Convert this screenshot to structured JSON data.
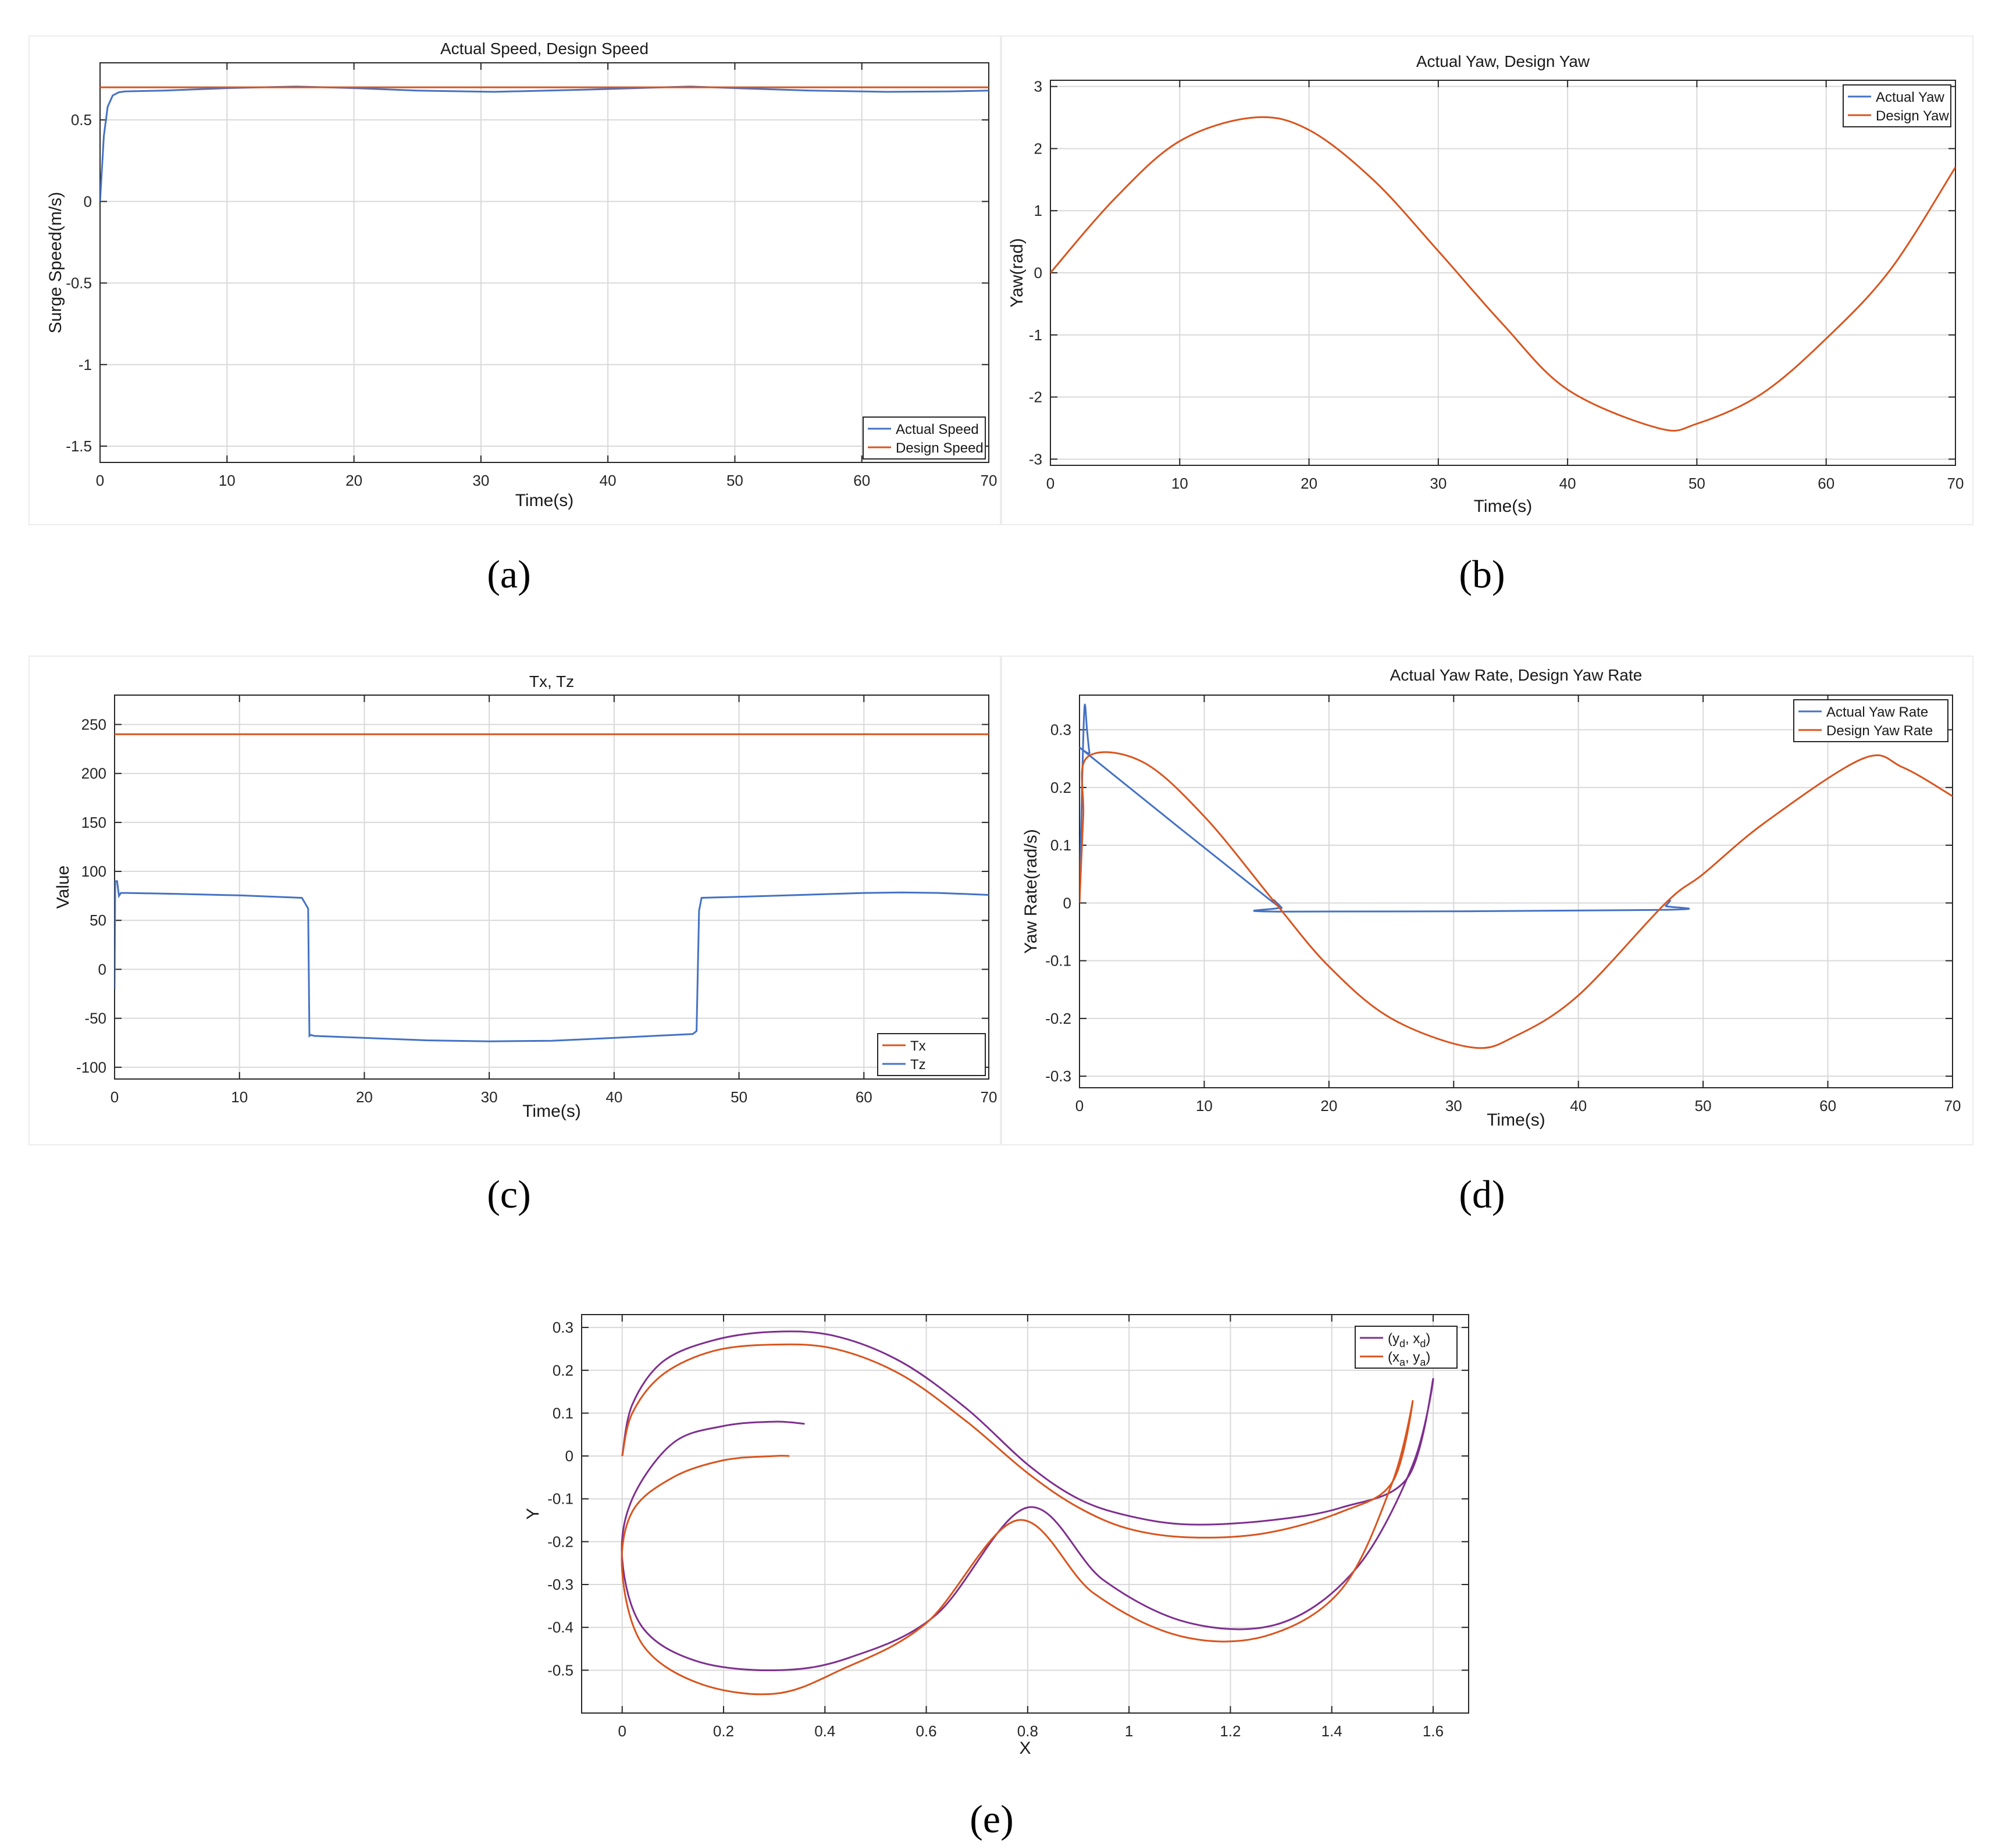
{
  "captions": [
    "(a)",
    "(b)",
    "(c)",
    "(d)",
    "(e)"
  ],
  "colors": {
    "blue": "#4472c4",
    "orange": "#d9541e",
    "purple": "#7e2f8e",
    "grid": "#d9d9d9",
    "axis": "#262626"
  },
  "chart_data": [
    {
      "id": "a",
      "type": "line",
      "title": "Actual Speed, Design Speed",
      "xlabel": "Time(s)",
      "ylabel": "Surge Speed(m/s)",
      "xlim": [
        0,
        70
      ],
      "ylim": [
        -1.6,
        0.85
      ],
      "xticks": [
        0,
        10,
        20,
        30,
        40,
        50,
        60,
        70
      ],
      "yticks": [
        -1.5,
        -1,
        -0.5,
        0,
        0.5
      ],
      "ytick_labels": [
        "-1.5",
        "-1",
        "-0.5",
        "0",
        "0.5"
      ],
      "grid": true,
      "legend_position": "bottom-right",
      "series": [
        {
          "name": "Actual Speed",
          "color": "blue",
          "x": [
            0,
            0.3,
            0.6,
            1,
            1.5,
            2,
            5,
            10,
            15.5,
            20,
            25,
            31,
            38,
            46.5,
            50,
            56,
            62,
            67,
            70
          ],
          "y": [
            0,
            0.4,
            0.58,
            0.65,
            0.67,
            0.675,
            0.68,
            0.695,
            0.705,
            0.695,
            0.68,
            0.672,
            0.685,
            0.705,
            0.695,
            0.68,
            0.672,
            0.675,
            0.68
          ]
        },
        {
          "name": "Design Speed",
          "color": "orange",
          "x": [
            0,
            70
          ],
          "y": [
            0.7,
            0.7
          ]
        }
      ]
    },
    {
      "id": "b",
      "type": "line",
      "title": "Actual Yaw, Design Yaw",
      "xlabel": "Time(s)",
      "ylabel": "Yaw(rad)",
      "xlim": [
        0,
        70
      ],
      "ylim": [
        -3.1,
        3.1
      ],
      "xticks": [
        0,
        10,
        20,
        30,
        40,
        50,
        60,
        70
      ],
      "yticks": [
        -3,
        -2,
        -1,
        0,
        1,
        2,
        3
      ],
      "ytick_labels": [
        "-3",
        "-2",
        "-1",
        "0",
        "1",
        "2",
        "3"
      ],
      "grid": true,
      "legend_position": "top-right",
      "series": [
        {
          "name": "Actual Yaw",
          "color": "blue",
          "x": [],
          "y": []
        },
        {
          "name": "Design Yaw",
          "color": "orange",
          "x": [
            0,
            5,
            10,
            15.7,
            20,
            25,
            30,
            35,
            40,
            47,
            50,
            55,
            60,
            65,
            70
          ],
          "y": [
            0,
            1.2,
            2.12,
            2.5,
            2.3,
            1.49,
            0.35,
            -0.83,
            -1.88,
            -2.5,
            -2.43,
            -1.95,
            -1.06,
            0.06,
            1.7
          ]
        }
      ]
    },
    {
      "id": "c",
      "type": "line",
      "title": "Tx, Tz",
      "xlabel": "Time(s)",
      "ylabel": "Value",
      "xlim": [
        0,
        70
      ],
      "ylim": [
        -112,
        280
      ],
      "xticks": [
        0,
        10,
        20,
        30,
        40,
        50,
        60,
        70
      ],
      "yticks": [
        -100,
        -50,
        0,
        50,
        100,
        150,
        200,
        250
      ],
      "ytick_labels": [
        "-100",
        "-50",
        "0",
        "50",
        "100",
        "150",
        "200",
        "250"
      ],
      "grid": true,
      "legend_position": "bottom-right",
      "series": [
        {
          "name": "Tx",
          "color": "orange",
          "x": [
            0,
            70
          ],
          "y": [
            240,
            240
          ]
        },
        {
          "name": "Tz",
          "color": "blue",
          "x": [
            0,
            0.05,
            0.2,
            0.35,
            0.5,
            1,
            5,
            10,
            15,
            15.5,
            15.6,
            15.7,
            16,
            20,
            25,
            30,
            35,
            40,
            46.3,
            46.6,
            46.8,
            47,
            50,
            55,
            60,
            63,
            66,
            70
          ],
          "y": [
            -20,
            90,
            90,
            75,
            78,
            78,
            77,
            75.5,
            73,
            62,
            -68,
            -67,
            -68,
            -70,
            -72.5,
            -73.5,
            -73,
            -70,
            -66,
            -63,
            60,
            73,
            74,
            76,
            78,
            78.5,
            78,
            76
          ]
        }
      ]
    },
    {
      "id": "d",
      "type": "line",
      "title": "Actual Yaw Rate, Design Yaw Rate",
      "xlabel": "Time(s)",
      "ylabel": "Yaw Rate(rad/s)",
      "xlim": [
        0,
        70
      ],
      "ylim": [
        -0.32,
        0.36
      ],
      "xticks": [
        0,
        10,
        20,
        30,
        40,
        50,
        60,
        70
      ],
      "yticks": [
        -0.3,
        -0.2,
        -0.1,
        0,
        0.1,
        0.2,
        0.3
      ],
      "ytick_labels": [
        "-0.3",
        "-0.2",
        "-0.1",
        "0",
        "0.1",
        "0.2",
        "0.3"
      ],
      "grid": true,
      "legend_position": "top-right",
      "series": [
        {
          "name": "Actual Yaw Rate",
          "color": "blue",
          "x": [
            0,
            0.2,
            0.4,
            0.6,
            0.8,
            1.0,
            15.0,
            15.6,
            16.0,
            16.3,
            46.5,
            47.0,
            47.4
          ],
          "y": [
            0,
            0.2,
            0.34,
            0.3,
            0.26,
            0.252,
            0.01,
            0.005,
            -0.008,
            -0.015,
            -0.012,
            -0.005,
            0.005
          ]
        },
        {
          "name": "Design Yaw Rate",
          "color": "orange",
          "x": [
            0,
            0.3,
            0.6,
            5,
            10,
            15.7,
            20,
            25,
            31.4,
            35,
            40,
            47,
            50,
            55,
            62.8,
            66,
            70
          ],
          "y": [
            0,
            0.15,
            0.252,
            0.245,
            0.15,
            0.0,
            -0.11,
            -0.2,
            -0.25,
            -0.23,
            -0.16,
            0.0,
            0.05,
            0.14,
            0.25,
            0.235,
            0.185
          ]
        }
      ]
    },
    {
      "id": "e",
      "type": "line",
      "title": "",
      "xlabel": "X",
      "ylabel": "Y",
      "xlim": [
        -0.08,
        1.67
      ],
      "ylim": [
        -0.6,
        0.33
      ],
      "xticks": [
        0,
        0.2,
        0.4,
        0.6,
        0.8,
        1,
        1.2,
        1.4,
        1.6
      ],
      "xtick_labels": [
        "0",
        "0.2",
        "0.4",
        "0.6",
        "0.8",
        "1",
        "1.2",
        "1.4",
        "1.6"
      ],
      "yticks": [
        -0.5,
        -0.4,
        -0.3,
        -0.2,
        -0.1,
        0,
        0.1,
        0.2,
        0.3
      ],
      "ytick_labels": [
        "-0.5",
        "-0.4",
        "-0.3",
        "-0.2",
        "-0.1",
        "0",
        "0.1",
        "0.2",
        "0.3"
      ],
      "grid": true,
      "legend_position": "top-right",
      "series": [
        {
          "name": "(y_d, x_d)",
          "color": "purple",
          "x": [
            0.0,
            0.02,
            0.08,
            0.18,
            0.3,
            0.42,
            0.55,
            0.68,
            0.8,
            0.9,
            1.0,
            1.12,
            1.28,
            1.42,
            1.55,
            1.6,
            1.56,
            1.45,
            1.3,
            1.12,
            0.95,
            0.8,
            0.62,
            0.45,
            0.31,
            0.15,
            0.04,
            0.0,
            0.02,
            0.1,
            0.2,
            0.3,
            0.36
          ],
          "y": [
            0.0,
            0.12,
            0.22,
            0.27,
            0.29,
            0.28,
            0.22,
            0.11,
            -0.02,
            -0.1,
            -0.14,
            -0.16,
            -0.15,
            -0.12,
            -0.05,
            0.18,
            -0.02,
            -0.26,
            -0.39,
            -0.39,
            -0.29,
            -0.12,
            -0.37,
            -0.47,
            -0.5,
            -0.48,
            -0.4,
            -0.24,
            -0.1,
            0.03,
            0.07,
            0.08,
            0.075
          ]
        },
        {
          "name": "(x_a, y_a)",
          "color": "orange",
          "x": [
            0.0,
            0.02,
            0.08,
            0.18,
            0.3,
            0.42,
            0.55,
            0.68,
            0.8,
            0.9,
            1.0,
            1.12,
            1.27,
            1.42,
            1.52,
            1.56,
            1.52,
            1.42,
            1.27,
            1.1,
            0.93,
            0.78,
            0.6,
            0.43,
            0.3,
            0.15,
            0.04,
            0.0,
            0.02,
            0.1,
            0.2,
            0.3,
            0.33
          ],
          "y": [
            0.0,
            0.1,
            0.19,
            0.245,
            0.26,
            0.25,
            0.19,
            0.08,
            -0.04,
            -0.12,
            -0.17,
            -0.19,
            -0.18,
            -0.13,
            -0.06,
            0.13,
            -0.06,
            -0.31,
            -0.42,
            -0.42,
            -0.32,
            -0.15,
            -0.39,
            -0.5,
            -0.555,
            -0.53,
            -0.44,
            -0.27,
            -0.13,
            -0.05,
            -0.01,
            0.0,
            0.0
          ]
        }
      ]
    }
  ]
}
